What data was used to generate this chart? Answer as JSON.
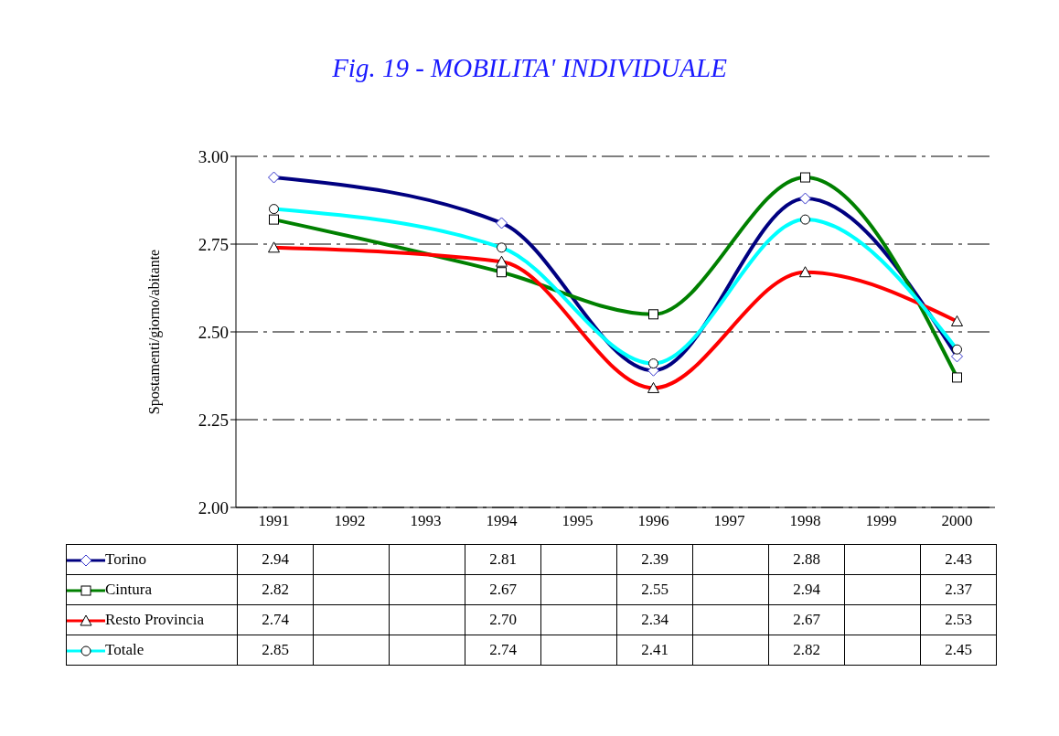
{
  "chart_data": {
    "type": "line",
    "title": "Fig. 19 - MOBILITA' INDIVIDUALE",
    "ylabel": "Spostamenti/giorno/abitante",
    "categories": [
      "1991",
      "1992",
      "1993",
      "1994",
      "1995",
      "1996",
      "1997",
      "1998",
      "1999",
      "2000"
    ],
    "series": [
      {
        "name": "Torino",
        "color": "#000080",
        "marker": "diamond",
        "values": [
          2.94,
          null,
          null,
          2.81,
          null,
          2.39,
          null,
          2.88,
          null,
          2.43
        ],
        "value_labels": [
          "2.94",
          null,
          null,
          "2.81",
          null,
          "2.39",
          null,
          "2.88",
          null,
          "2.43"
        ]
      },
      {
        "name": "Cintura",
        "color": "#008000",
        "marker": "square",
        "values": [
          2.82,
          null,
          null,
          2.67,
          null,
          2.55,
          null,
          2.94,
          null,
          2.37
        ],
        "value_labels": [
          "2.82",
          null,
          null,
          "2.67",
          null,
          "2.55",
          null,
          "2.94",
          null,
          "2.37"
        ]
      },
      {
        "name": "Resto Provincia",
        "color": "#ff0000",
        "marker": "triangle",
        "values": [
          2.74,
          null,
          null,
          2.7,
          null,
          2.34,
          null,
          2.67,
          null,
          2.53
        ],
        "value_labels": [
          "2.74",
          null,
          null,
          "2.70",
          null,
          "2.34",
          null,
          "2.67",
          null,
          "2.53"
        ]
      },
      {
        "name": "Totale",
        "color": "#00ffff",
        "marker": "circle",
        "values": [
          2.85,
          null,
          null,
          2.74,
          null,
          2.41,
          null,
          2.82,
          null,
          2.45
        ],
        "value_labels": [
          "2.85",
          null,
          null,
          "2.74",
          null,
          "2.41",
          null,
          "2.82",
          null,
          "2.45"
        ]
      }
    ],
    "ylim": [
      2,
      3
    ],
    "yticks": [
      {
        "value": 2,
        "label": "2.00"
      },
      {
        "value": 2.25,
        "label": "2.25"
      },
      {
        "value": 2.5,
        "label": "2.50"
      },
      {
        "value": 2.75,
        "label": "2.75"
      },
      {
        "value": 3,
        "label": "3.00"
      }
    ],
    "grid": "y",
    "legend": "bottom",
    "line_style": "solid"
  }
}
